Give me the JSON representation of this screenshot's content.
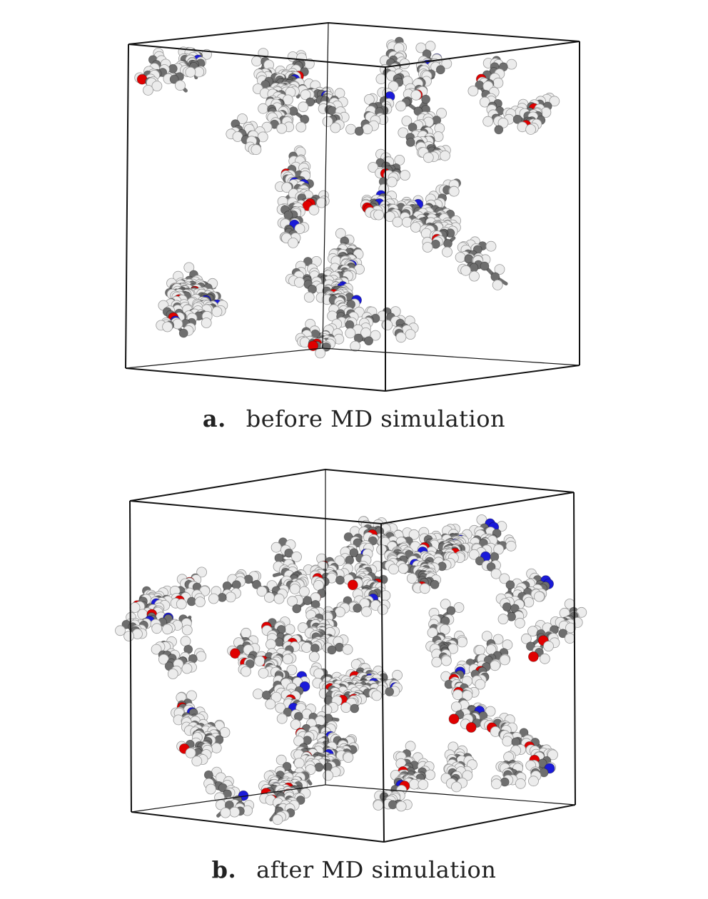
{
  "panels": [
    {
      "letter": "a.",
      "caption": "before MD simulation"
    },
    {
      "letter": "b.",
      "caption": "after MD simulation"
    }
  ],
  "colors": {
    "hydrogen": "#ececec",
    "carbon": "#6e6e6e",
    "oxygen": "#e00000",
    "nitrogen": "#1a1ad8",
    "box_edge": "#111111"
  }
}
